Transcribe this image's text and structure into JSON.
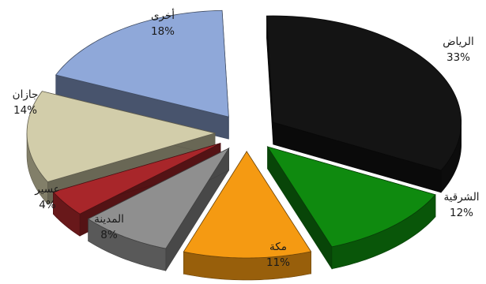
{
  "chart_data": {
    "type": "pie",
    "variant": "3d-exploded",
    "title": "",
    "slices": [
      {
        "label": "الرياض",
        "value": 33,
        "value_label": "33%",
        "color": "#141414"
      },
      {
        "label": "الشرقية",
        "value": 12,
        "value_label": "12%",
        "color": "#0f8a0f"
      },
      {
        "label": "مكة",
        "value": 11,
        "value_label": "11%",
        "color": "#f59a12"
      },
      {
        "label": "المدينة",
        "value": 8,
        "value_label": "8%",
        "color": "#8f8f8f"
      },
      {
        "label": "عسير",
        "value": 4,
        "value_label": "4%",
        "color": "#a8262a"
      },
      {
        "label": "جازان",
        "value": 14,
        "value_label": "14%",
        "color": "#d2cdaa"
      },
      {
        "label": "أخرى",
        "value": 18,
        "value_label": "18%",
        "color": "#8fa8d9"
      }
    ],
    "legend": "none"
  }
}
